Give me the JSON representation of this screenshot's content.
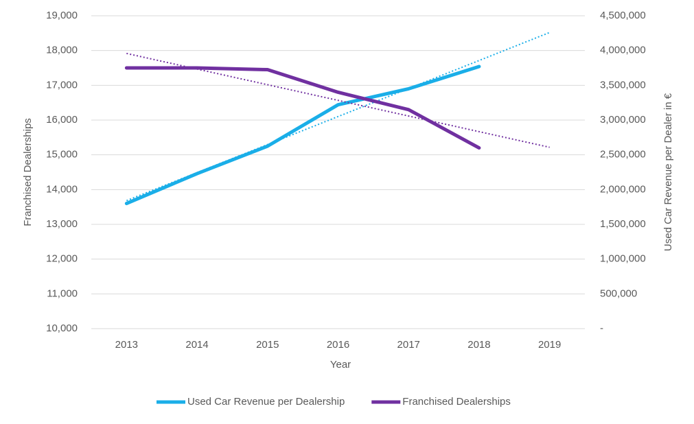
{
  "chart_data": {
    "type": "line",
    "x_label": "Year",
    "y_label": "Franchised Dealerships",
    "y2_label": "Used Car Revenue per Dealer in €",
    "categories": [
      "2013",
      "2014",
      "2015",
      "2016",
      "2017",
      "2018",
      "2019"
    ],
    "series": [
      {
        "name": "Used Car Revenue per Dealership",
        "color": "#1aaee8",
        "axis": "y2",
        "trendline": true,
        "values": [
          1800000,
          2230000,
          2625000,
          3220000,
          3450000,
          3770000,
          null
        ]
      },
      {
        "name": "Franchised Dealerships",
        "color": "#7030a0",
        "trendline": true,
        "values": [
          17500,
          17500,
          17450,
          16800,
          16300,
          15200,
          null
        ]
      }
    ],
    "ylim": [
      10000,
      19000
    ],
    "yticks": [
      {
        "value": 10000,
        "label": "10,000"
      },
      {
        "value": 11000,
        "label": "11,000"
      },
      {
        "value": 12000,
        "label": "12,000"
      },
      {
        "value": 13000,
        "label": "13,000"
      },
      {
        "value": 14000,
        "label": "14,000"
      },
      {
        "value": 15000,
        "label": "15,000"
      },
      {
        "value": 16000,
        "label": "16,000"
      },
      {
        "value": 17000,
        "label": "17,000"
      },
      {
        "value": 18000,
        "label": "18,000"
      },
      {
        "value": 19000,
        "label": "19,000"
      }
    ],
    "y2lim": [
      0,
      4500000
    ],
    "y2ticks": [
      {
        "value": 0,
        "label": "-"
      },
      {
        "value": 500000,
        "label": "500,000"
      },
      {
        "value": 1000000,
        "label": "1,000,000"
      },
      {
        "value": 1500000,
        "label": "1,500,000"
      },
      {
        "value": 2000000,
        "label": "2,000,000"
      },
      {
        "value": 2500000,
        "label": "2,500,000"
      },
      {
        "value": 3000000,
        "label": "3,000,000"
      },
      {
        "value": 3500000,
        "label": "3,500,000"
      },
      {
        "value": 4000000,
        "label": "4,000,000"
      },
      {
        "value": 4500000,
        "label": "4,500,000"
      }
    ],
    "grid": true,
    "legend": "bottom"
  }
}
